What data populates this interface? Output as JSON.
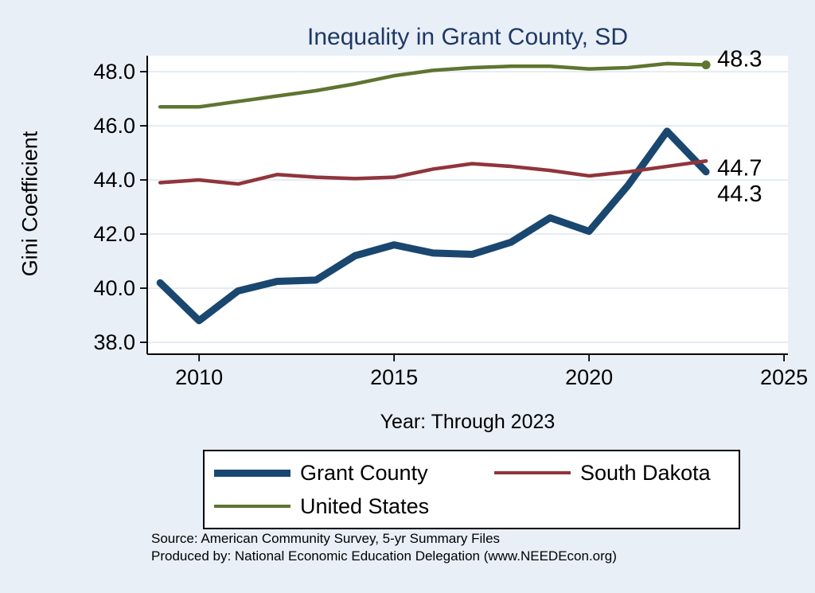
{
  "chart_data": {
    "type": "line",
    "title": "Inequality in Grant County, SD",
    "xlabel": "Year: Through 2023",
    "ylabel": "Gini Coefficient",
    "x": [
      2009,
      2010,
      2011,
      2012,
      2013,
      2014,
      2015,
      2016,
      2017,
      2018,
      2019,
      2020,
      2021,
      2022,
      2023
    ],
    "series": [
      {
        "name": "Grant County",
        "color": "#1a476f",
        "line_width": 9,
        "values": [
          40.2,
          38.8,
          39.9,
          40.25,
          40.3,
          41.2,
          41.6,
          41.3,
          41.25,
          41.7,
          42.6,
          42.1,
          43.8,
          45.8,
          44.3
        ],
        "end_label": "44.3",
        "end_label_dy": 27,
        "end_marker": false
      },
      {
        "name": "South Dakota",
        "color": "#90353b",
        "line_width": 4.5,
        "values": [
          43.9,
          44.0,
          43.85,
          44.2,
          44.1,
          44.05,
          44.1,
          44.4,
          44.6,
          44.5,
          44.35,
          44.15,
          44.3,
          44.5,
          44.7
        ],
        "end_label": "44.7",
        "end_label_dy": 8,
        "end_marker": false
      },
      {
        "name": "United States",
        "color": "#5f7530",
        "line_width": 4.5,
        "values": [
          46.7,
          46.7,
          46.9,
          47.1,
          47.3,
          47.55,
          47.85,
          48.05,
          48.15,
          48.2,
          48.2,
          48.1,
          48.15,
          48.3,
          48.25
        ],
        "end_label": "48.3",
        "end_label_dy": -8,
        "end_marker": true
      }
    ],
    "yticks": [
      38.0,
      40.0,
      42.0,
      44.0,
      46.0,
      48.0
    ],
    "ytick_labels": [
      "38.0",
      "40.0",
      "42.0",
      "44.0",
      "46.0",
      "48.0"
    ],
    "xticks": [
      2010,
      2015,
      2020,
      2025
    ],
    "xtick_labels": [
      "2010",
      "2015",
      "2020",
      "2025"
    ],
    "xlim": [
      2008.67,
      2025.1
    ],
    "ylim": [
      37.56,
      48.59
    ],
    "grid": true,
    "legend_position": "bottom"
  },
  "colors": {
    "background": "#e9eff7",
    "plot_background": "#ffffff",
    "grid": "#d9e4f1",
    "title": "#1f3864",
    "axis": "#000000",
    "text": "#000000"
  },
  "notes": [
    "Source: American Community Survey, 5-yr Summary Files",
    "Produced by: National Economic Education Delegation (www.NEEDEcon.org)"
  ]
}
